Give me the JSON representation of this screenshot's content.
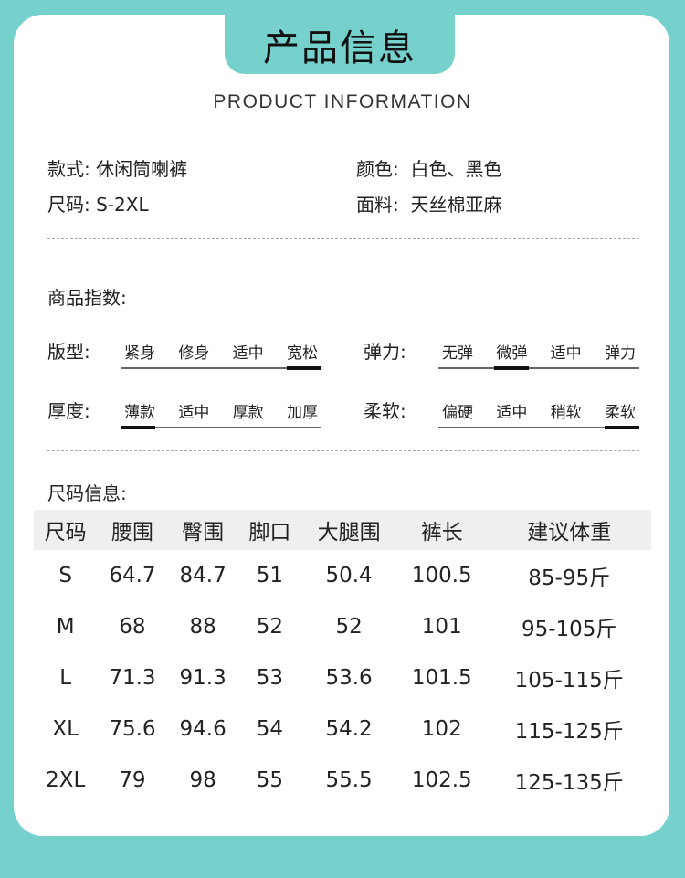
{
  "colors": {
    "background": "#76d1cd",
    "card": "#ffffff",
    "header_row": "#efefef"
  },
  "title": "产品信息",
  "subtitle": "PRODUCT INFORMATION",
  "specs": [
    {
      "label": "款式:",
      "value": "休闲筒喇裤"
    },
    {
      "label": "颜色:",
      "value": "白色、黑色"
    },
    {
      "label": "尺码:",
      "value": "S-2XL"
    },
    {
      "label": "面料:",
      "value": "天丝棉亚麻"
    }
  ],
  "index_title": "商品指数:",
  "indices": [
    {
      "label": "版型:",
      "options": [
        "紧身",
        "修身",
        "适中",
        "宽松"
      ],
      "selected": 3
    },
    {
      "label": "弹力:",
      "options": [
        "无弹",
        "微弹",
        "适中",
        "弹力"
      ],
      "selected": 1
    },
    {
      "label": "厚度:",
      "options": [
        "薄款",
        "适中",
        "厚款",
        "加厚"
      ],
      "selected": 0
    },
    {
      "label": "柔软:",
      "options": [
        "偏硬",
        "适中",
        "稍软",
        "柔软"
      ],
      "selected": 3
    }
  ],
  "size_title": "尺码信息:",
  "size_table": {
    "headers": [
      "尺码",
      "腰围",
      "臀围",
      "脚口",
      "大腿围",
      "裤长",
      "建议体重"
    ],
    "rows": [
      [
        "S",
        "64.7",
        "84.7",
        "51",
        "50.4",
        "100.5",
        "85-95斤"
      ],
      [
        "M",
        "68",
        "88",
        "52",
        "52",
        "101",
        "95-105斤"
      ],
      [
        "L",
        "71.3",
        "91.3",
        "53",
        "53.6",
        "101.5",
        "105-115斤"
      ],
      [
        "XL",
        "75.6",
        "94.6",
        "54",
        "54.2",
        "102",
        "115-125斤"
      ],
      [
        "2XL",
        "79",
        "98",
        "55",
        "55.5",
        "102.5",
        "125-135斤"
      ]
    ]
  }
}
